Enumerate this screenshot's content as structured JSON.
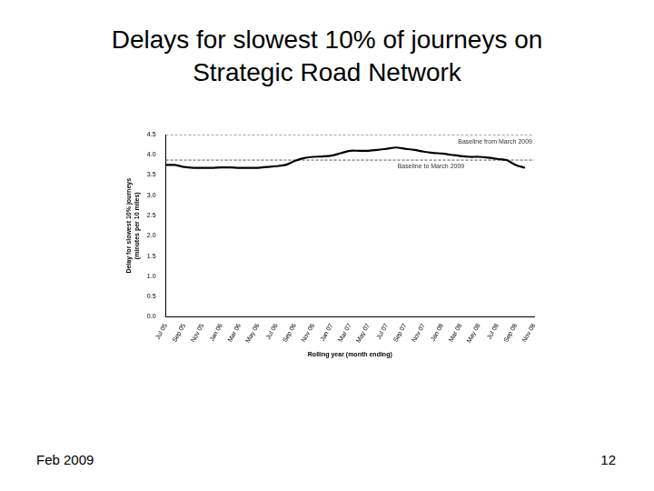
{
  "page": {
    "date": "Feb 2009",
    "page_number": "12"
  },
  "chart_data": {
    "type": "line",
    "title": "Delays for slowest 10% of journeys on Strategic Road Network",
    "x_label": "Rolling year (month ending)",
    "y_label": [
      "Delay for slowest 10% journeys",
      "(minutes per 10 miles)"
    ],
    "categories": [
      "Jul 05",
      null,
      "Sep 05",
      null,
      "Nov 05",
      null,
      "Jan 06",
      null,
      "Mar 06",
      null,
      "May 06",
      null,
      "Jul 06",
      null,
      "Sep 06",
      null,
      "Nov 06",
      null,
      "Jan 07",
      null,
      "Mar 07",
      null,
      "May 07",
      null,
      "Jul 07",
      null,
      "Sep 07",
      null,
      "Nov 07",
      null,
      "Jan 08",
      null,
      "Mar 08",
      null,
      "May 08",
      null,
      "Jul 08",
      null,
      "Sep 08",
      null,
      "Nov 08"
    ],
    "series": [
      {
        "color": "#000000",
        "line_style": "solid",
        "values": [
          3.75,
          3.75,
          3.7,
          3.68,
          3.68,
          3.68,
          3.69,
          3.69,
          3.68,
          3.68,
          3.68,
          3.7,
          3.72,
          3.75,
          3.85,
          3.92,
          3.95,
          3.96,
          3.98,
          4.04,
          4.1,
          4.1,
          4.1,
          4.12,
          4.15,
          4.18,
          4.15,
          4.12,
          4.08,
          4.05,
          4.03,
          4.0,
          3.97,
          3.95,
          3.95,
          3.93,
          3.9,
          3.87,
          3.75,
          3.68,
          null
        ]
      },
      {
        "name": "Baseline to March 2009",
        "color": "#555555",
        "line_style": "dashed",
        "values": [
          3.87,
          3.87,
          3.87,
          3.87,
          3.87,
          3.87,
          3.87,
          3.87,
          3.87,
          3.87,
          3.87,
          3.87,
          3.87,
          3.87,
          3.87,
          3.87,
          3.87,
          3.87,
          3.87,
          3.87,
          3.87,
          3.87,
          3.87,
          3.87,
          3.87,
          3.87,
          3.87,
          3.87,
          3.87,
          3.87,
          3.87,
          3.87,
          3.87,
          3.87,
          3.87,
          3.87,
          3.87,
          3.87,
          3.87,
          3.87,
          3.87
        ]
      },
      {
        "name": "Baseline from March 2009",
        "color": "#555555",
        "line_style": "dashed",
        "values": [
          4.5,
          4.5,
          4.5,
          4.5,
          4.5,
          4.5,
          4.5,
          4.5,
          4.5,
          4.5,
          4.5,
          4.5,
          4.5,
          4.5,
          4.5,
          4.5,
          4.5,
          4.5,
          4.5,
          4.5,
          4.5,
          4.5,
          4.5,
          4.5,
          4.5,
          4.5,
          4.5,
          4.5,
          4.5,
          4.5,
          4.5,
          4.5,
          4.5,
          4.5,
          4.5,
          4.5,
          4.5,
          4.5,
          4.5,
          4.5,
          4.5
        ]
      }
    ],
    "ylim": [
      0,
      4.5
    ],
    "yticks": [
      {
        "value": 0,
        "label": "0.0"
      },
      0.5,
      {
        "value": 1,
        "label": "1.0"
      },
      1.5,
      {
        "value": 2,
        "label": "2.0"
      },
      2.5,
      {
        "value": 3,
        "label": "3.0"
      },
      3.5,
      {
        "value": 4,
        "label": "4.0"
      },
      4.5
    ],
    "grid": false
  }
}
